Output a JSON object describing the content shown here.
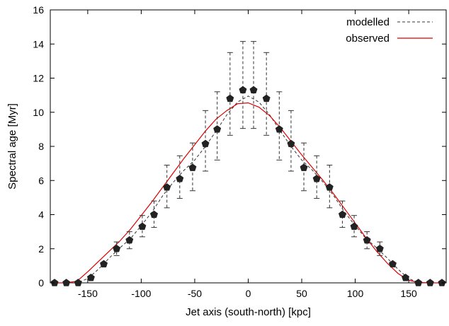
{
  "chart_data": {
    "type": "scatter",
    "xlabel": "Jet axis (south-north) [kpc]",
    "ylabel": "Spectral age [Myr]",
    "xlim": [
      -185,
      185
    ],
    "ylim": [
      0,
      16
    ],
    "x_ticks": [
      -150,
      -100,
      -50,
      0,
      50,
      100,
      150
    ],
    "x_tick_labels": [
      "-150",
      "-100",
      "-50",
      "0",
      "50",
      "100",
      "150"
    ],
    "y_ticks": [
      0,
      2,
      4,
      6,
      8,
      10,
      12,
      14,
      16
    ],
    "y_tick_labels": [
      "0",
      "2",
      "4",
      "6",
      "8",
      "10",
      "12",
      "14",
      "16"
    ],
    "grid": false,
    "legend": {
      "position": "top-right",
      "entries": [
        {
          "label": "modelled",
          "style": "dashed",
          "color": "#333333"
        },
        {
          "label": "observed",
          "style": "solid",
          "color": "#dd0000"
        }
      ]
    },
    "points": {
      "name": "",
      "marker": "pentagon",
      "color": "#222222",
      "x": [
        -181,
        -170,
        -159,
        -147,
        -135,
        -123,
        -111,
        -99,
        -88,
        -76,
        -64,
        -52,
        -40,
        -29,
        -17,
        -5,
        5,
        17,
        29,
        40,
        52,
        64,
        76,
        88,
        99,
        111,
        123,
        135,
        147,
        159,
        170,
        181
      ],
      "y": [
        0,
        0,
        0,
        0.3,
        1.1,
        2.0,
        2.5,
        3.3,
        4.0,
        5.6,
        6.1,
        6.75,
        8.15,
        9.0,
        10.8,
        11.3,
        11.3,
        10.8,
        9.0,
        8.15,
        6.75,
        6.1,
        5.6,
        4.0,
        3.3,
        2.5,
        2.0,
        1.1,
        0.3,
        0,
        0,
        0
      ],
      "err_low": [
        0,
        0,
        0,
        0,
        0.1,
        0.4,
        0.5,
        0.6,
        0.75,
        1.2,
        1.15,
        1.35,
        1.6,
        1.8,
        2.15,
        2.25,
        2.25,
        2.15,
        1.8,
        1.6,
        1.35,
        1.15,
        1.2,
        0.75,
        0.6,
        0.5,
        0.4,
        0.1,
        0,
        0,
        0,
        0
      ],
      "err_high": [
        0,
        0,
        0,
        0,
        0.1,
        0.4,
        0.5,
        0.65,
        0.8,
        1.3,
        1.35,
        1.45,
        1.95,
        2.2,
        2.7,
        2.85,
        2.85,
        2.7,
        2.2,
        1.95,
        1.45,
        1.35,
        1.3,
        0.8,
        0.65,
        0.5,
        0.4,
        0.1,
        0,
        0,
        0,
        0
      ]
    },
    "modelled_curve": {
      "name": "modelled",
      "style": "dashed",
      "color": "#333333",
      "x": [
        -181,
        -170,
        -159,
        -150,
        -140,
        -130,
        -120,
        -110,
        -100,
        -90,
        -80,
        -70,
        -60,
        -50,
        -40,
        -30,
        -20,
        -10,
        0,
        10,
        20,
        30,
        40,
        50,
        60,
        70,
        80,
        90,
        100,
        110,
        120,
        130,
        140,
        150,
        159,
        170,
        181
      ],
      "y": [
        0,
        0,
        0.02,
        0.25,
        0.8,
        1.45,
        2.05,
        2.6,
        3.35,
        4.15,
        5.1,
        5.9,
        6.6,
        7.2,
        8.0,
        8.9,
        9.85,
        10.6,
        10.95,
        10.6,
        9.85,
        8.9,
        8.0,
        7.2,
        6.6,
        5.9,
        5.1,
        4.15,
        3.35,
        2.6,
        2.05,
        1.45,
        0.8,
        0.25,
        0.02,
        0,
        0
      ]
    },
    "observed_curve": {
      "name": "observed",
      "style": "solid",
      "color": "#dd0000",
      "x": [
        -181,
        -170,
        -160,
        -150,
        -140,
        -130,
        -120,
        -110,
        -100,
        -90,
        -80,
        -70,
        -60,
        -50,
        -40,
        -30,
        -20,
        -10,
        0,
        10,
        20,
        30,
        40,
        50,
        60,
        70,
        80,
        90,
        100,
        110,
        120,
        130,
        140,
        150,
        160,
        170,
        181
      ],
      "y": [
        0,
        0,
        0.1,
        0.65,
        1.25,
        1.85,
        2.45,
        3.15,
        3.95,
        4.75,
        5.6,
        6.45,
        7.3,
        8.1,
        8.9,
        9.6,
        10.1,
        10.5,
        10.55,
        10.3,
        9.8,
        9.1,
        8.3,
        7.5,
        6.75,
        6.0,
        5.2,
        4.35,
        3.5,
        2.65,
        1.85,
        1.15,
        0.55,
        0.15,
        0.02,
        0,
        0
      ]
    }
  }
}
